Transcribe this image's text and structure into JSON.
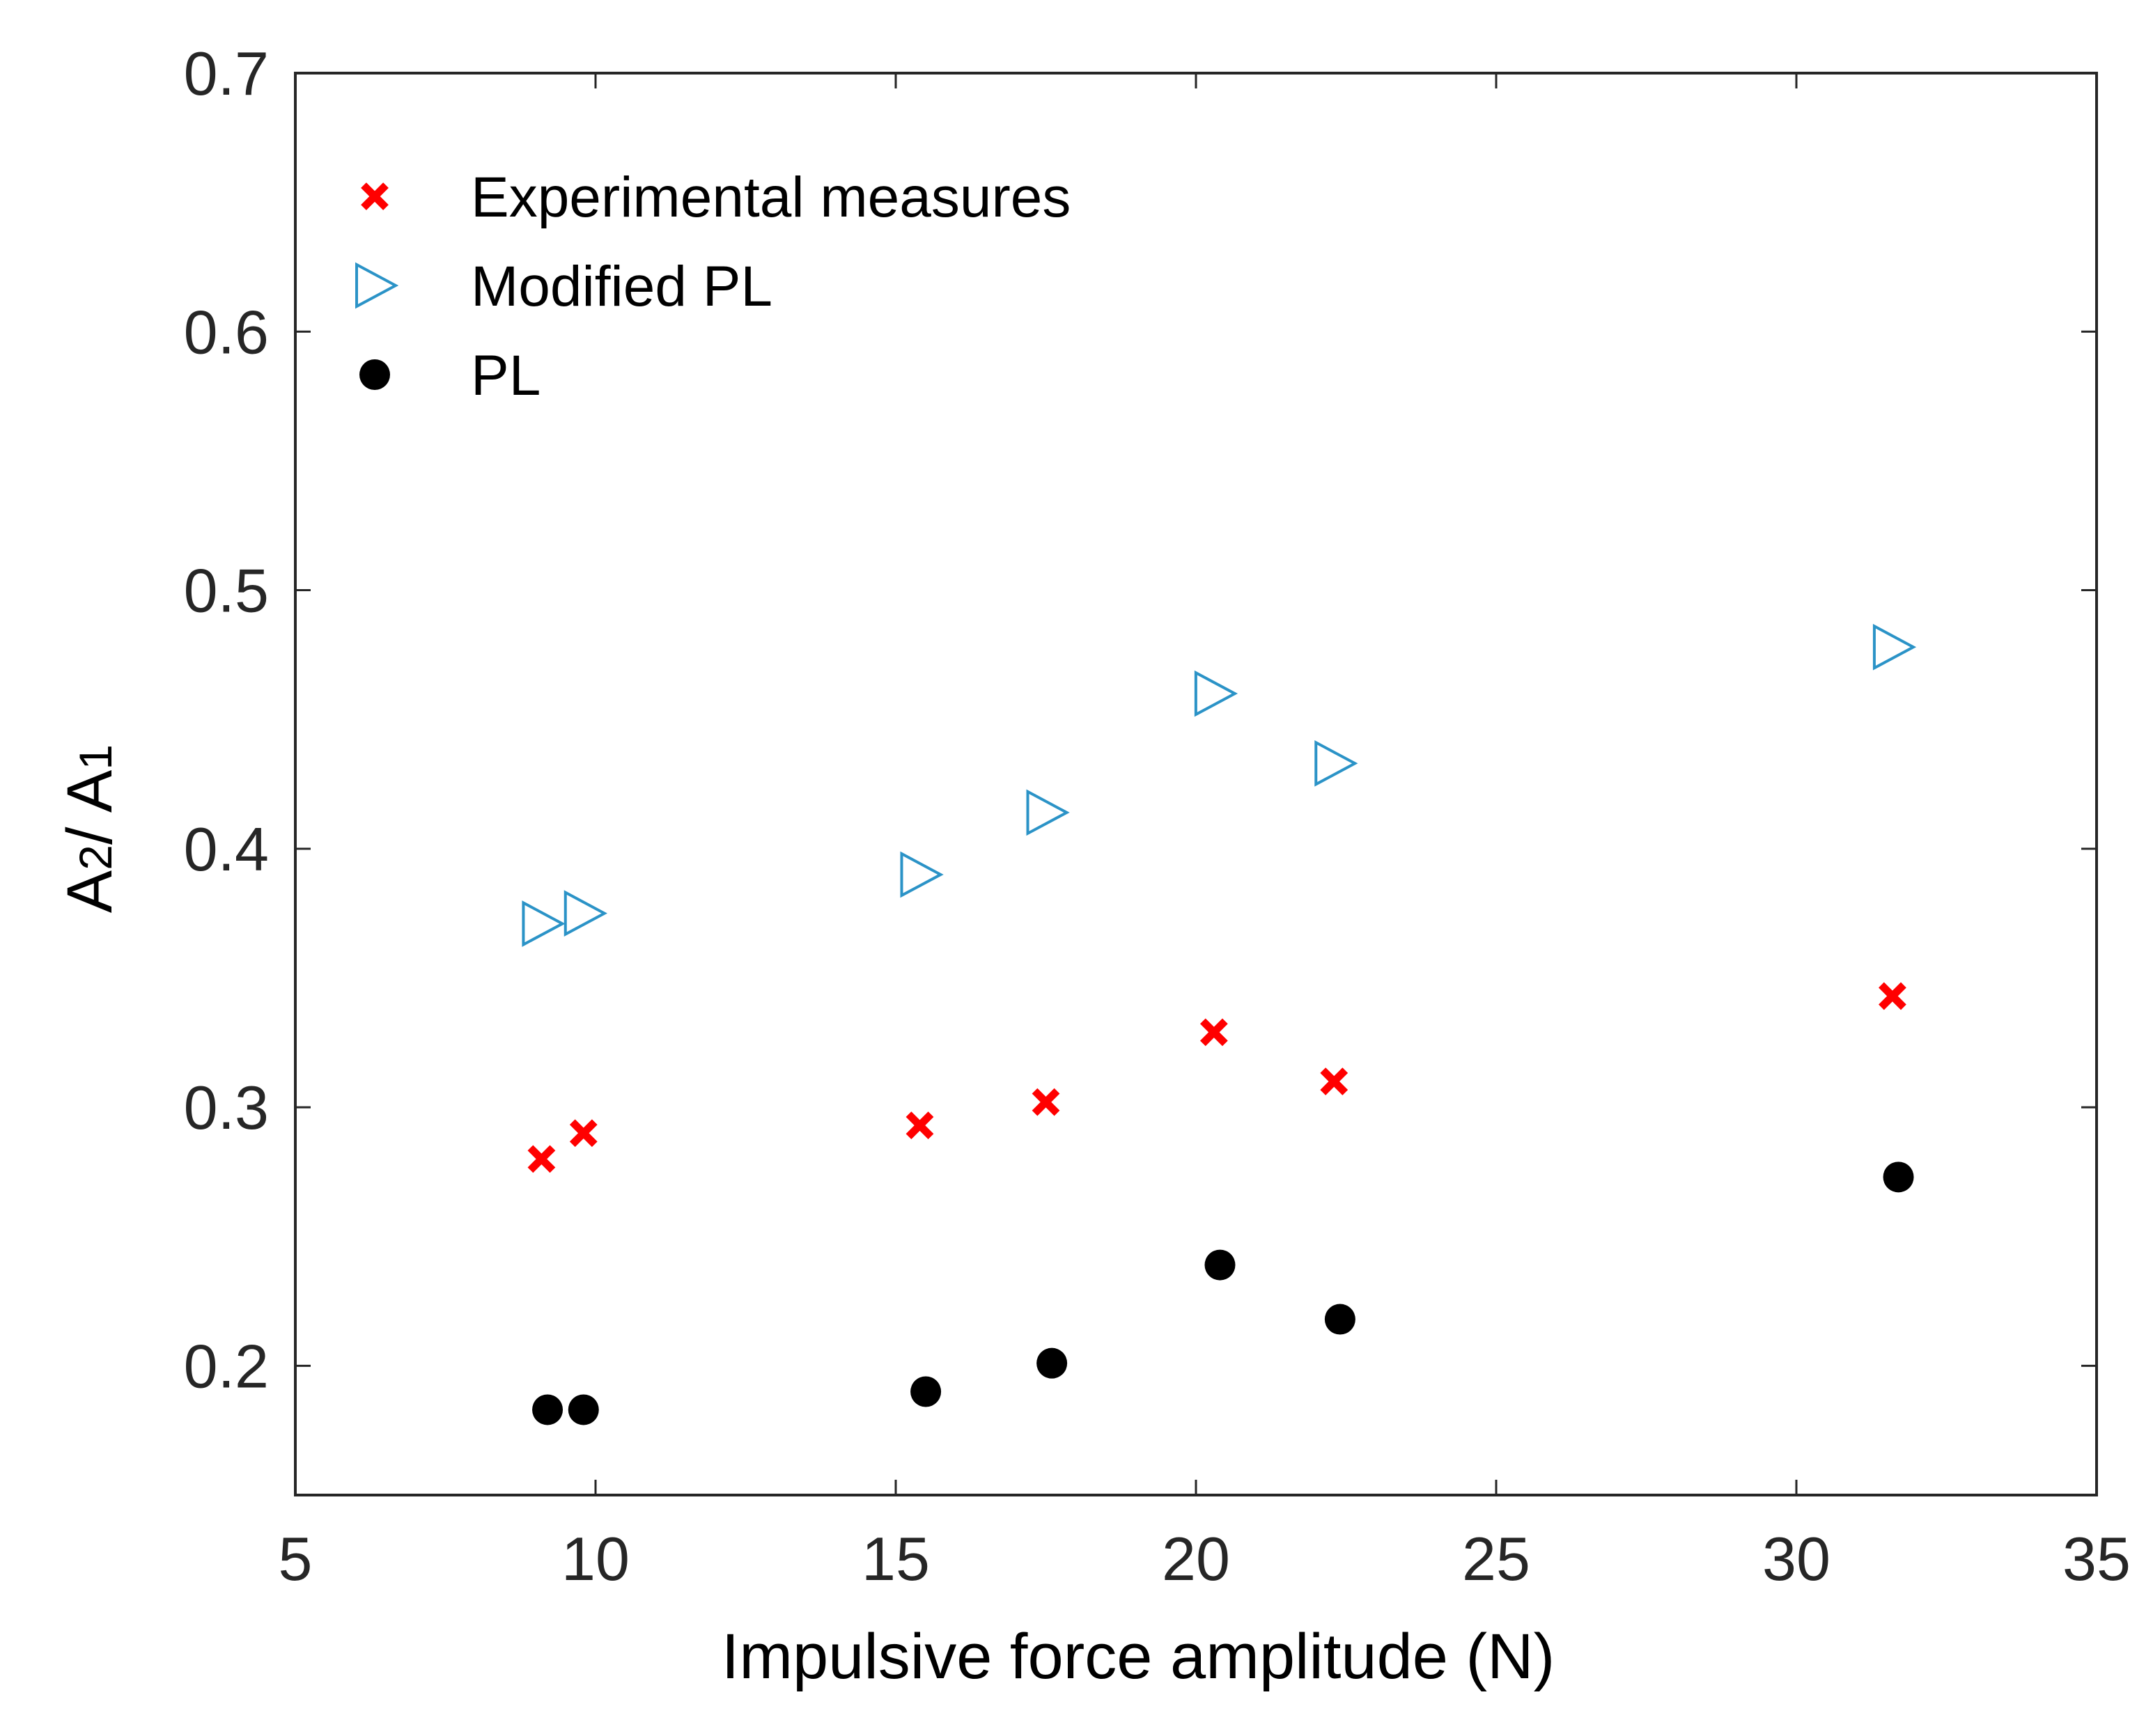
{
  "chart_data": {
    "type": "scatter",
    "title": "",
    "xlabel": "Impulsive force amplitude (N)",
    "ylabel": "A2/ A1",
    "ylabel_parts": {
      "a": "A",
      "sub1": "2",
      "slash": "/ A",
      "sub2": "1"
    },
    "xlim": [
      5,
      35
    ],
    "ylim": [
      0.15,
      0.7
    ],
    "xticks": [
      5,
      10,
      15,
      20,
      25,
      30,
      35
    ],
    "xtick_labels": [
      "5",
      "10",
      "15",
      "20",
      "25",
      "30",
      "35"
    ],
    "yticks": [
      0.2,
      0.3,
      0.4,
      0.5,
      0.6,
      0.7
    ],
    "ytick_labels": [
      "0.2",
      "0.3",
      "0.4",
      "0.5",
      "0.6",
      "0.7"
    ],
    "grid": false,
    "legend_position": "top-left",
    "series": [
      {
        "name": "Experimental measures",
        "marker": "x",
        "color": "#ff0000",
        "x": [
          9.1,
          9.8,
          15.4,
          17.5,
          20.3,
          22.3,
          31.6
        ],
        "y": [
          0.28,
          0.29,
          0.293,
          0.302,
          0.329,
          0.31,
          0.343
        ]
      },
      {
        "name": "Modified PL",
        "marker": "triangle-right",
        "color": "#2b93c7",
        "x": [
          9.1,
          9.8,
          15.4,
          17.5,
          20.3,
          22.3,
          31.6
        ],
        "y": [
          0.371,
          0.375,
          0.39,
          0.414,
          0.46,
          0.433,
          0.478
        ]
      },
      {
        "name": "PL",
        "marker": "circle",
        "color": "#000000",
        "x": [
          9.2,
          9.8,
          15.5,
          17.6,
          20.4,
          22.4,
          31.7
        ],
        "y": [
          0.183,
          0.183,
          0.19,
          0.201,
          0.239,
          0.218,
          0.273
        ]
      }
    ]
  }
}
